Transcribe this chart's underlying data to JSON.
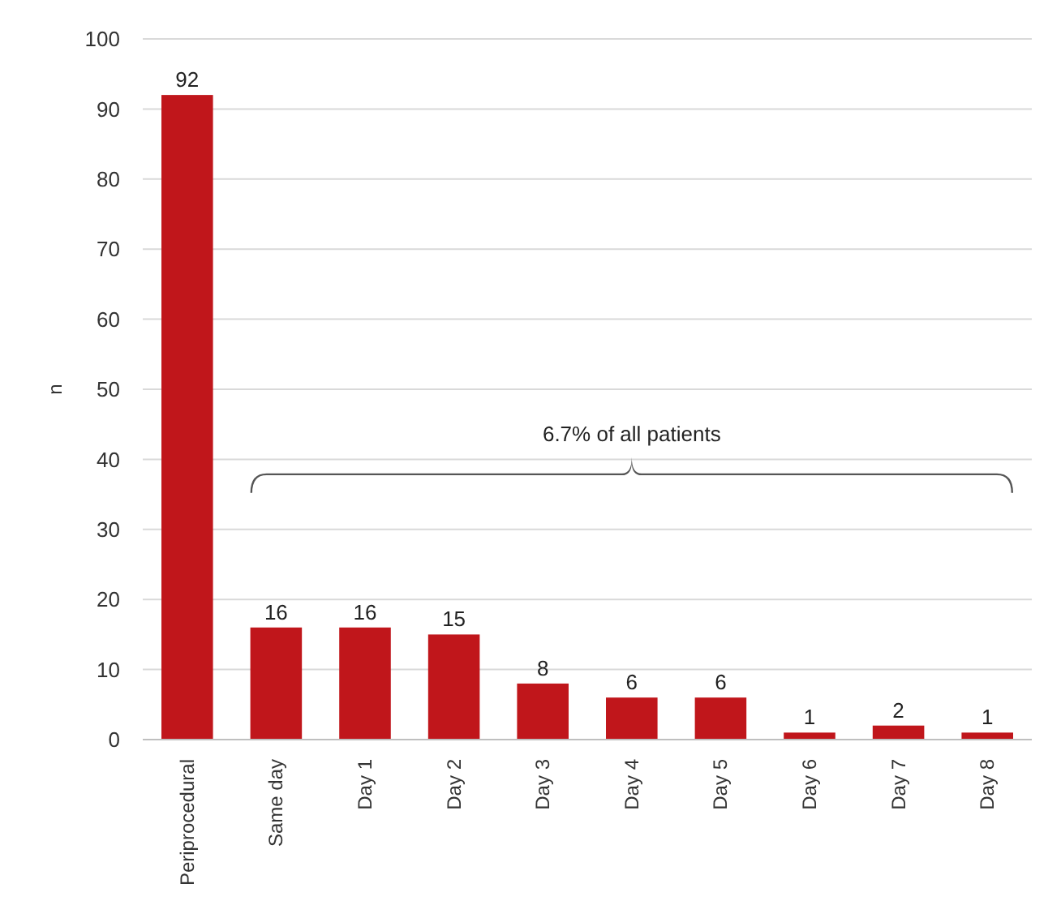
{
  "chart_data": {
    "type": "bar",
    "ylabel": "n",
    "categories": [
      "Periprocedural",
      "Same day",
      "Day 1",
      "Day 2",
      "Day 3",
      "Day 4",
      "Day 5",
      "Day 6",
      "Day 7",
      "Day 8"
    ],
    "values": [
      92,
      16,
      16,
      15,
      8,
      6,
      6,
      1,
      2,
      1
    ],
    "color": "#c0161b",
    "ylim": [
      0,
      100
    ],
    "yticks": [
      0,
      10,
      20,
      30,
      40,
      50,
      60,
      70,
      80,
      90,
      100
    ],
    "grid": "y",
    "data_labels": true,
    "annotations": [
      "6.7% of all patients"
    ]
  }
}
